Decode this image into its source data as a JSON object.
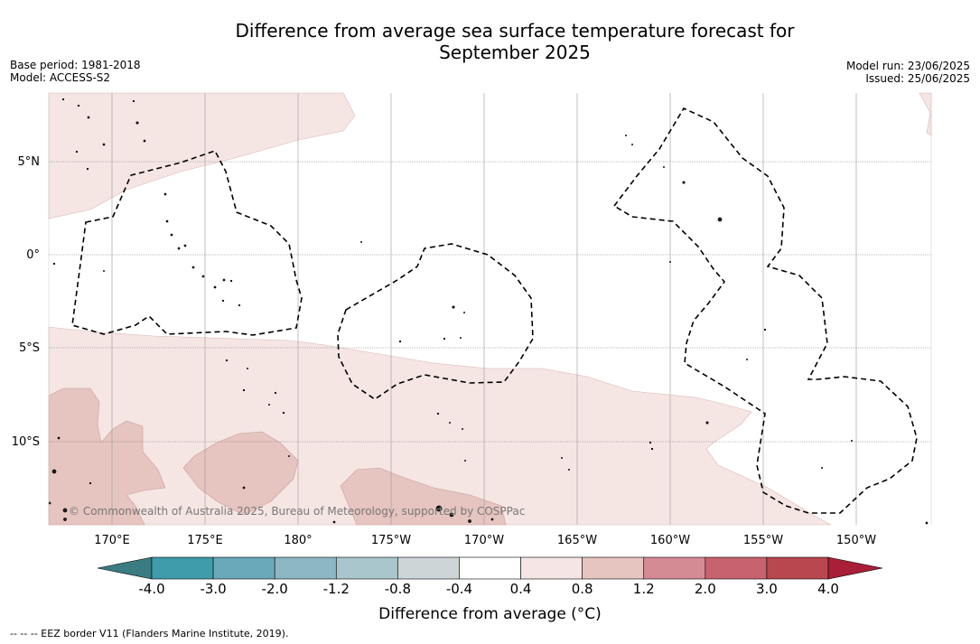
{
  "title_line1": "Difference from average sea surface temperature forecast for",
  "title_line2": "September 2025",
  "base_period": "Base period: 1981-2018",
  "model": "Model: ACCESS-S2",
  "model_run": "Model run: 23/06/2025",
  "issued": "Issued: 25/06/2025",
  "lat_labels": [
    "5°N",
    "0°",
    "5°S",
    "10°S"
  ],
  "lon_labels": [
    "170°E",
    "175°E",
    "180°",
    "175°W",
    "170°W",
    "165°W",
    "160°W",
    "155°W",
    "150°W"
  ],
  "attribution": "© Commonwealth of Australia 2025, Bureau of Meteorology, supported by COSPPac",
  "colorbar": {
    "ticks": [
      "-4.0",
      "-3.0",
      "-2.0",
      "-1.2",
      "-0.8",
      "-0.4",
      "0.4",
      "0.8",
      "1.2",
      "2.0",
      "3.0",
      "4.0"
    ],
    "colors": [
      "#3e9cab",
      "#6aa9b9",
      "#8db7c2",
      "#a8c6cb",
      "#cdd6d7",
      "#ffffff",
      "#f5e5e4",
      "#e6c4c0",
      "#d58b94",
      "#c7626f",
      "#b9474f"
    ],
    "under_color": "#3b7c83",
    "over_color": "#a91f38",
    "label": "Difference from average ($^\\circ$C)",
    "label_rendered": "Difference from average (°C)"
  },
  "footnote": "-- -- -- EEZ border V11 (Flanders Marine Institute, 2019).",
  "footnote_rendered": "--  --  -- EEZ border V11 (Flanders Marine Institute, 2019).",
  "legend_colors": {
    "light": "#f5e6e4",
    "mid": "#e6c4c0",
    "eez": "#000000"
  }
}
